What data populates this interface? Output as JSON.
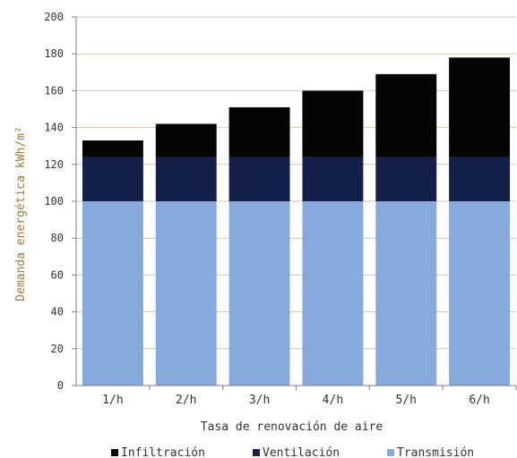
{
  "chart_data": {
    "type": "bar",
    "stacked": true,
    "categories": [
      "1/h",
      "2/h",
      "3/h",
      "4/h",
      "5/h",
      "6/h"
    ],
    "series": [
      {
        "name": "Transmisión",
        "values": [
          100,
          100,
          100,
          100,
          100,
          100
        ],
        "color": "#86aadc"
      },
      {
        "name": "Ventilación",
        "values": [
          24,
          24,
          24,
          24,
          24,
          24
        ],
        "color": "#14204a"
      },
      {
        "name": "Infiltración",
        "values": [
          9,
          18,
          27,
          36,
          45,
          54
        ],
        "color": "#050505"
      }
    ],
    "legend_order": [
      "Infiltración",
      "Ventilación",
      "Transmisión"
    ],
    "xlabel": "Tasa de renovación de aire",
    "ylabel": "Demanda energética kWh/m²",
    "ylim": [
      0,
      200
    ],
    "yticks": [
      0,
      20,
      40,
      60,
      80,
      100,
      120,
      140,
      160,
      180,
      200
    ],
    "grid": true,
    "gridline_color": "#d2c9a6",
    "legend_position": "bottom"
  }
}
